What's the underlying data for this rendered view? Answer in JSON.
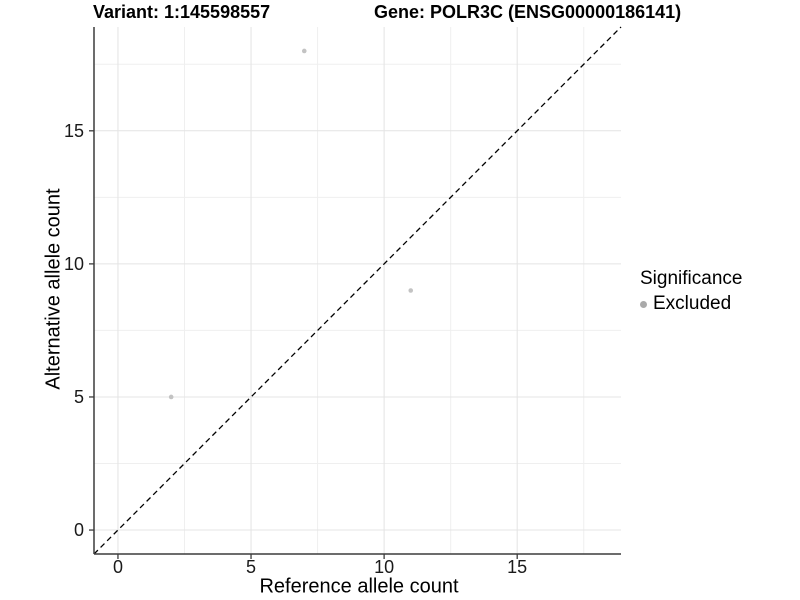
{
  "titles": {
    "variant": "Variant: 1:145598557",
    "gene": "Gene: POLR3C (ENSG00000186141)"
  },
  "chart_data": {
    "type": "scatter",
    "xlabel": "Reference allele count",
    "ylabel": "Alternative allele count",
    "xlim": [
      -0.9,
      18.9
    ],
    "ylim": [
      -0.9,
      18.9
    ],
    "major_ticks": [
      0,
      5,
      10,
      15
    ],
    "minor_gridlines": [
      2.5,
      7.5,
      12.5,
      17.5
    ],
    "grid": true,
    "identity_line": {
      "style": "dashed",
      "from": [
        -0.9,
        -0.9
      ],
      "to": [
        18.9,
        18.9
      ],
      "color": "#000000"
    },
    "series": [
      {
        "name": "Excluded",
        "color": "#c3c3c3",
        "points": [
          {
            "x": 2,
            "y": 5
          },
          {
            "x": 7,
            "y": 18
          },
          {
            "x": 11,
            "y": 9
          }
        ]
      }
    ],
    "legend": {
      "title": "Significance",
      "position": "right",
      "items": [
        {
          "label": "Excluded",
          "color": "#aaaaaa"
        }
      ]
    }
  },
  "colors": {
    "background": "#ffffff",
    "grid_major": "#e4e4e4",
    "grid_minor": "#efefef",
    "axis_line": "#3c3c3c",
    "tick_text": "#1a1a1a",
    "title_text": "#000000"
  }
}
